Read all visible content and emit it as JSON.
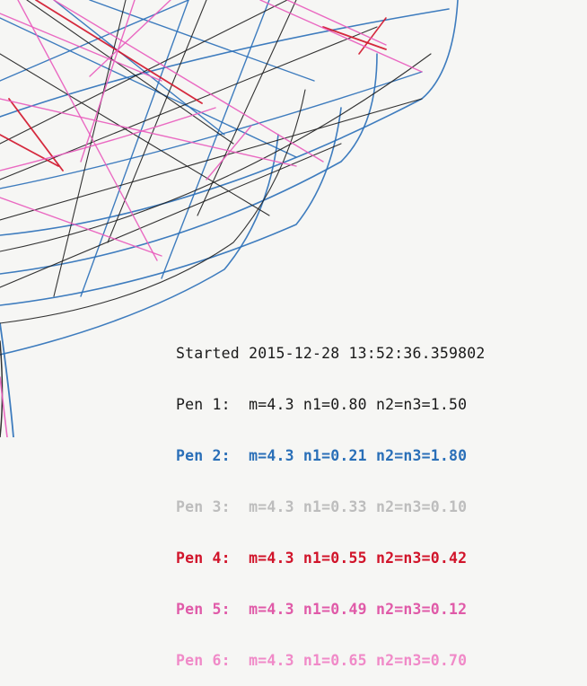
{
  "plot": {
    "background": "#f6f6f4",
    "pens": [
      {
        "id": "black",
        "color": "#1e1e1e"
      },
      {
        "id": "blue",
        "color": "#2a6fb8"
      },
      {
        "id": "red",
        "color": "#d1142a"
      },
      {
        "id": "pink",
        "color": "#e95bbd"
      }
    ]
  },
  "legend": {
    "started": "Started 2015-12-28 13:52:36.359802",
    "lines": [
      {
        "text": "Pen 1:  m=4.3 n1=0.80 n2=n3=1.50",
        "color": "#1a1a1a"
      },
      {
        "text": "Pen 2:  m=4.3 n1=0.21 n2=n3=1.80",
        "color": "#2a6fb8"
      },
      {
        "text": "Pen 3:  m=4.3 n1=0.33 n2=n3=0.10",
        "color": "#bdbdbd"
      },
      {
        "text": "Pen 4:  m=4.3 n1=0.55 n2=n3=0.42",
        "color": "#d1142a"
      },
      {
        "text": "Pen 5:  m=4.3 n1=0.49 n2=n3=0.12",
        "color": "#e05aa8"
      },
      {
        "text": "Pen 6:  m=4.3 n1=0.65 n2=n3=0.70",
        "color": "#f08ac8"
      }
    ]
  }
}
